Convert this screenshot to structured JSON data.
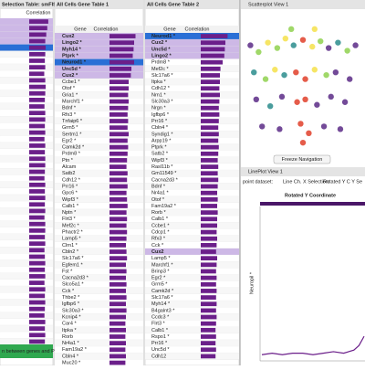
{
  "panels": [
    {
      "title": "Selection Table: smFISH",
      "column": "Correlation",
      "selected_rows": [
        0,
        1,
        2,
        3
      ],
      "focused_row": 4,
      "xlim": [
        0,
        1
      ],
      "correlation": [
        0.95,
        0.9,
        0.85,
        0.8,
        0.82,
        0.8,
        0.78,
        0.8,
        0.75,
        0.8,
        0.82,
        0.8,
        0.78,
        0.76,
        0.8,
        0.8,
        0.78,
        0.8,
        0.76,
        0.8,
        0.78,
        0.8,
        0.8,
        0.78,
        0.76,
        0.8,
        0.78,
        0.8,
        0.78,
        0.8,
        0.76,
        0.8,
        0.8,
        0.78,
        0.8,
        0.76,
        0.78,
        0.8,
        0.78,
        0.8,
        0.76,
        0.8,
        0.78,
        0.8,
        0.78,
        0.76,
        0.8,
        0.78,
        0.8,
        0.78
      ],
      "footer": "n between genes and Po"
    },
    {
      "title": "All Cells Gene Table 1",
      "columns": [
        "Gene",
        "Correlation"
      ],
      "selected_rows": [
        0,
        1,
        2,
        3,
        4,
        5,
        6
      ],
      "focused_row": 4,
      "xlim": [
        0,
        1
      ],
      "genes": [
        "Cux2",
        "Lingo2 *",
        "Myh14 *",
        "Ptprk *",
        "Neurod1 *",
        "Unc5d *",
        "Cux2 *",
        "Ccbe1 *",
        "Otof *",
        "Gria1 *",
        "Marchf1 *",
        "Bdnf *",
        "Rfx3 *",
        "Tnfaip6 *",
        "Grm5 *",
        "Sertm1 *",
        "Egr2 *",
        "Camk2d *",
        "Prdm8 *",
        "Ptn *",
        "Alcam",
        "Satb2",
        "Cdh12 *",
        "Prr16 *",
        "Gpc6 *",
        "Wipf3 *",
        "Calb1 *",
        "Nptn *",
        "Flrt3 *",
        "Mef2c *",
        "Phactr2 *",
        "Lamp5 *",
        "Clrn1 *",
        "Cbln2 *",
        "Slc17a6 *",
        "Egfem1 *",
        "Fst *",
        "Cacna2d3 *",
        "Slco5a1 *",
        "Cck *",
        "Thbe2 *",
        "Igfbp6 *",
        "Slc30a3 *",
        "Kcnip4 *",
        "Car4 *",
        "Itpka *",
        "Rorb",
        "Nr4a1 *",
        "Fam19a2 *",
        "Cbln4 *",
        "Muc20 *"
      ],
      "correlation": [
        0.95,
        0.9,
        0.88,
        0.85,
        0.9,
        0.8,
        0.78,
        0.7,
        0.7,
        0.68,
        0.7,
        0.68,
        0.66,
        0.68,
        0.66,
        0.7,
        0.66,
        0.68,
        0.66,
        0.64,
        0.62,
        0.66,
        0.64,
        0.66,
        0.62,
        0.64,
        0.66,
        0.62,
        0.64,
        0.62,
        0.64,
        0.62,
        0.6,
        0.62,
        0.64,
        0.6,
        0.62,
        0.6,
        0.62,
        0.6,
        0.62,
        0.6,
        0.62,
        0.6,
        0.58,
        0.6,
        0.58,
        0.6,
        0.58,
        0.6,
        0.58
      ]
    },
    {
      "title": "All Cells Gene Table 2",
      "columns": [
        "Gene",
        "Correlation"
      ],
      "selected_rows": [
        0,
        1,
        2,
        3,
        33
      ],
      "focused_row": 0,
      "xlim": [
        0,
        1
      ],
      "genes": [
        "Neurod1 *",
        "Cux2 *",
        "Unc5d *",
        "Lingo2 *",
        "Prdm8 *",
        "Mef2c *",
        "Slc17a6 *",
        "Itpka *",
        "Cdh12 *",
        "Nrn1 *",
        "Slc30a3 *",
        "Nrgn *",
        "Igfbp6 *",
        "Prr16 *",
        "Cbln4 *",
        "Syndig1 *",
        "Arpp19 *",
        "Ptprk *",
        "Satb2 *",
        "Wipf3 *",
        "Rasl11b *",
        "Gm11549 *",
        "Cacna2d3 *",
        "Bdnf *",
        "Nr4a1 *",
        "Otof *",
        "Fam19a2 *",
        "Rorb *",
        "Calb1 *",
        "Ccbe1 *",
        "Cdcp1 *",
        "Rfx3 *",
        "Cck *",
        "Cux2",
        "Lamp5 *",
        "Marchf1 *",
        "Brinp3 *",
        "Egr2 *",
        "Grm5 *",
        "Camk2d *",
        "Slc17a6 *",
        "Myh14 *",
        "B4galnt3 *",
        "Ccdc3 *",
        "Flrt3 *",
        "Calb1 *",
        "Rspo1 *",
        "Prr16 *",
        "Unc5d *",
        "Cdh12"
      ],
      "correlation": [
        0.98,
        0.9,
        0.88,
        0.86,
        0.8,
        0.72,
        0.7,
        0.7,
        0.68,
        0.7,
        0.68,
        0.66,
        0.68,
        0.66,
        0.64,
        0.66,
        0.64,
        0.66,
        0.64,
        0.62,
        0.64,
        0.62,
        0.64,
        0.62,
        0.6,
        0.62,
        0.6,
        0.62,
        0.6,
        0.6,
        0.58,
        0.6,
        0.58,
        0.56,
        0.6,
        0.58,
        0.56,
        0.58,
        0.56,
        0.58,
        0.56,
        0.58,
        0.56,
        0.58,
        0.56,
        0.54,
        0.56,
        0.54,
        0.56,
        0.54
      ]
    }
  ],
  "scatter": {
    "title": "Scatterplot View 1",
    "button": "Freeze Navigation",
    "xlim": [
      0,
      100
    ],
    "ylim": [
      0,
      100
    ],
    "colors": [
      "#5b2a86",
      "#8fd14f",
      "#f5e14a",
      "#2a8c8c",
      "#e0402a"
    ],
    "points": [
      [
        5,
        80,
        0
      ],
      [
        12,
        75,
        1
      ],
      [
        20,
        82,
        2
      ],
      [
        28,
        78,
        1
      ],
      [
        35,
        85,
        2
      ],
      [
        42,
        80,
        3
      ],
      [
        50,
        84,
        4
      ],
      [
        58,
        79,
        2
      ],
      [
        65,
        83,
        1
      ],
      [
        72,
        78,
        0
      ],
      [
        80,
        82,
        3
      ],
      [
        88,
        76,
        1
      ],
      [
        95,
        80,
        0
      ],
      [
        8,
        60,
        3
      ],
      [
        18,
        55,
        1
      ],
      [
        26,
        62,
        2
      ],
      [
        34,
        58,
        3
      ],
      [
        44,
        60,
        4
      ],
      [
        52,
        55,
        4
      ],
      [
        60,
        62,
        2
      ],
      [
        70,
        58,
        1
      ],
      [
        78,
        60,
        0
      ],
      [
        90,
        55,
        0
      ],
      [
        10,
        40,
        0
      ],
      [
        22,
        35,
        3
      ],
      [
        32,
        42,
        0
      ],
      [
        45,
        38,
        4
      ],
      [
        52,
        40,
        4
      ],
      [
        62,
        36,
        0
      ],
      [
        74,
        42,
        0
      ],
      [
        86,
        38,
        0
      ],
      [
        15,
        20,
        0
      ],
      [
        30,
        18,
        0
      ],
      [
        48,
        22,
        4
      ],
      [
        55,
        15,
        4
      ],
      [
        68,
        20,
        0
      ],
      [
        82,
        18,
        0
      ],
      [
        50,
        8,
        4
      ],
      [
        40,
        92,
        1
      ],
      [
        60,
        92,
        2
      ]
    ]
  },
  "lineplot": {
    "header": "LinePlot View 1",
    "controls": [
      "point dataset:",
      "Line Ch. X Selection:",
      "Rotated Y C Y Se"
    ],
    "title": "Rotated Y Coordinate",
    "ylabel": "Neuropil *",
    "xlim": [
      0,
      10
    ],
    "ylim": [
      0,
      1
    ],
    "x": [
      0,
      1,
      2,
      3,
      4,
      5,
      6,
      7,
      8,
      9,
      9.5,
      10
    ],
    "y": [
      0.04,
      0.05,
      0.04,
      0.05,
      0.05,
      0.04,
      0.05,
      0.06,
      0.05,
      0.07,
      0.1,
      0.16
    ]
  }
}
